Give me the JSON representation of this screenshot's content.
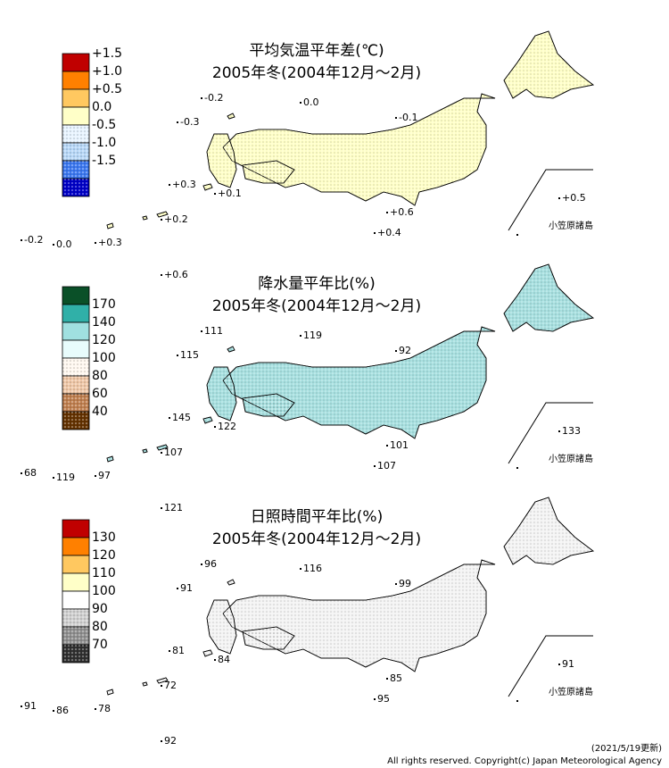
{
  "panels": [
    {
      "title": "平均気温平年差(℃)",
      "subtitle": "2005年冬(2004年12月～2月)",
      "map_color": "#ffffc8",
      "legend": [
        {
          "label": "+1.5",
          "color": "#c00000"
        },
        {
          "label": "+1.0",
          "color": "#ff8000"
        },
        {
          "label": "+0.5",
          "color": "#ffc860"
        },
        {
          "label": "0.0",
          "color": "#ffffc8"
        },
        {
          "label": "-0.5",
          "color": "#e8f4ff",
          "dotted": true
        },
        {
          "label": "-1.0",
          "color": "#b8d8f8",
          "dotted": true
        },
        {
          "label": "-1.5",
          "color": "#3c78f0",
          "dotted": true
        },
        {
          "color": "#0000c8",
          "dotted": true
        }
      ],
      "stations": [
        "-0.2",
        "0.0",
        "-0.3",
        "-0.1",
        "+0.3",
        "+0.1",
        "+0.5",
        "+0.6",
        "+0.2",
        "-0.2",
        "0.0",
        "+0.3",
        "+0.4",
        "+0.6"
      ],
      "inset_label": "小笠原諸島"
    },
    {
      "title": "降水量平年比(%)",
      "subtitle": "2005年冬(2004年12月～2月)",
      "map_color": "#a8e0e0",
      "legend": [
        {
          "color": "#0a5028"
        },
        {
          "label": "170",
          "color": "#30b0a8"
        },
        {
          "label": "140",
          "color": "#a0e0e0"
        },
        {
          "label": "120",
          "color": "#e8fcfc"
        },
        {
          "label": "100",
          "color": "#fff8f0",
          "dotted": true
        },
        {
          "label": "80",
          "color": "#f0c8a8",
          "dotted": true
        },
        {
          "label": "60",
          "color": "#c08050",
          "dotted": true
        },
        {
          "label": "40",
          "color": "#643200",
          "dotted": true
        }
      ],
      "stations": [
        "111",
        "119",
        "115",
        "92",
        "145",
        "122",
        "133",
        "101",
        "107",
        "68",
        "119",
        "97",
        "107",
        "121"
      ],
      "inset_label": "小笠原諸島"
    },
    {
      "title": "日照時間平年比(%)",
      "subtitle": "2005年冬(2004年12月～2月)",
      "map_color": "#f4f4f4",
      "legend": [
        {
          "color": "#c00000"
        },
        {
          "label": "130",
          "color": "#ff8000"
        },
        {
          "label": "120",
          "color": "#ffc860"
        },
        {
          "label": "110",
          "color": "#ffffc8"
        },
        {
          "label": "100",
          "color": "#ffffff"
        },
        {
          "label": "90",
          "color": "#d0d0d0",
          "dotted": true
        },
        {
          "label": "80",
          "color": "#909090",
          "dotted": true
        },
        {
          "label": "70",
          "color": "#303030",
          "dotted": true
        }
      ],
      "stations": [
        "96",
        "116",
        "91",
        "99",
        "81",
        "84",
        "91",
        "85",
        "72",
        "91",
        "86",
        "78",
        "95",
        "92"
      ],
      "inset_label": "小笠原諸島"
    }
  ],
  "footer": {
    "date": "(2021/5/19更新)",
    "copyright": "All rights reserved. Copyright(c) Japan Meteorological Agency"
  }
}
